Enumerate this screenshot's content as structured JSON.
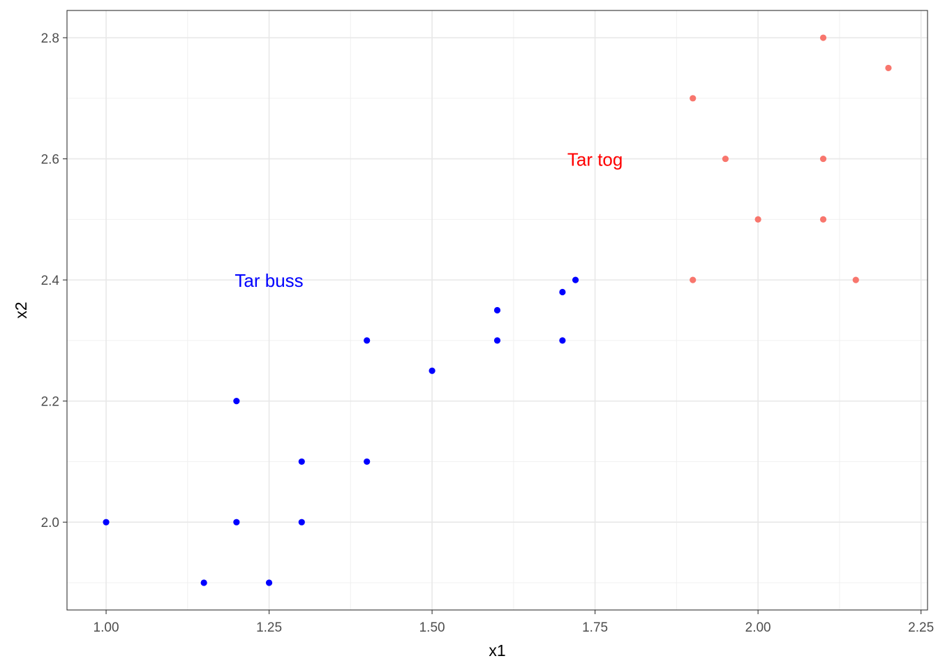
{
  "chart_data": {
    "type": "scatter",
    "title": "",
    "xlabel": "x1",
    "ylabel": "x2",
    "xlim": [
      0.94,
      2.26
    ],
    "ylim": [
      1.855,
      2.845
    ],
    "grid": true,
    "x_ticks": [
      1.0,
      1.25,
      1.5,
      1.75,
      2.0,
      2.25
    ],
    "x_tick_labels": [
      "1.00",
      "1.25",
      "1.50",
      "1.75",
      "2.00",
      "2.25"
    ],
    "y_ticks": [
      2.0,
      2.2,
      2.4,
      2.6,
      2.8
    ],
    "y_tick_labels": [
      "2.0",
      "2.2",
      "2.4",
      "2.6",
      "2.8"
    ],
    "series": [
      {
        "color": "#0000ff",
        "points": [
          [
            1.0,
            2.0
          ],
          [
            1.15,
            1.9
          ],
          [
            1.2,
            2.0
          ],
          [
            1.2,
            2.2
          ],
          [
            1.25,
            1.9
          ],
          [
            1.3,
            2.0
          ],
          [
            1.3,
            2.1
          ],
          [
            1.4,
            2.1
          ],
          [
            1.4,
            2.3
          ],
          [
            1.5,
            2.25
          ],
          [
            1.6,
            2.3
          ],
          [
            1.6,
            2.35
          ],
          [
            1.7,
            2.3
          ],
          [
            1.7,
            2.38
          ],
          [
            1.72,
            2.4
          ]
        ]
      },
      {
        "color": "#f8766d",
        "points": [
          [
            1.9,
            2.4
          ],
          [
            1.9,
            2.7
          ],
          [
            1.95,
            2.6
          ],
          [
            2.0,
            2.5
          ],
          [
            2.1,
            2.5
          ],
          [
            2.1,
            2.6
          ],
          [
            2.1,
            2.8
          ],
          [
            2.15,
            2.4
          ],
          [
            2.2,
            2.75
          ]
        ]
      }
    ],
    "annotations": [
      {
        "text": "Tar buss",
        "x": 1.25,
        "y": 2.4,
        "color": "#0000ff"
      },
      {
        "text": "Tar tog",
        "x": 1.75,
        "y": 2.6,
        "color": "#ff0000"
      }
    ]
  }
}
